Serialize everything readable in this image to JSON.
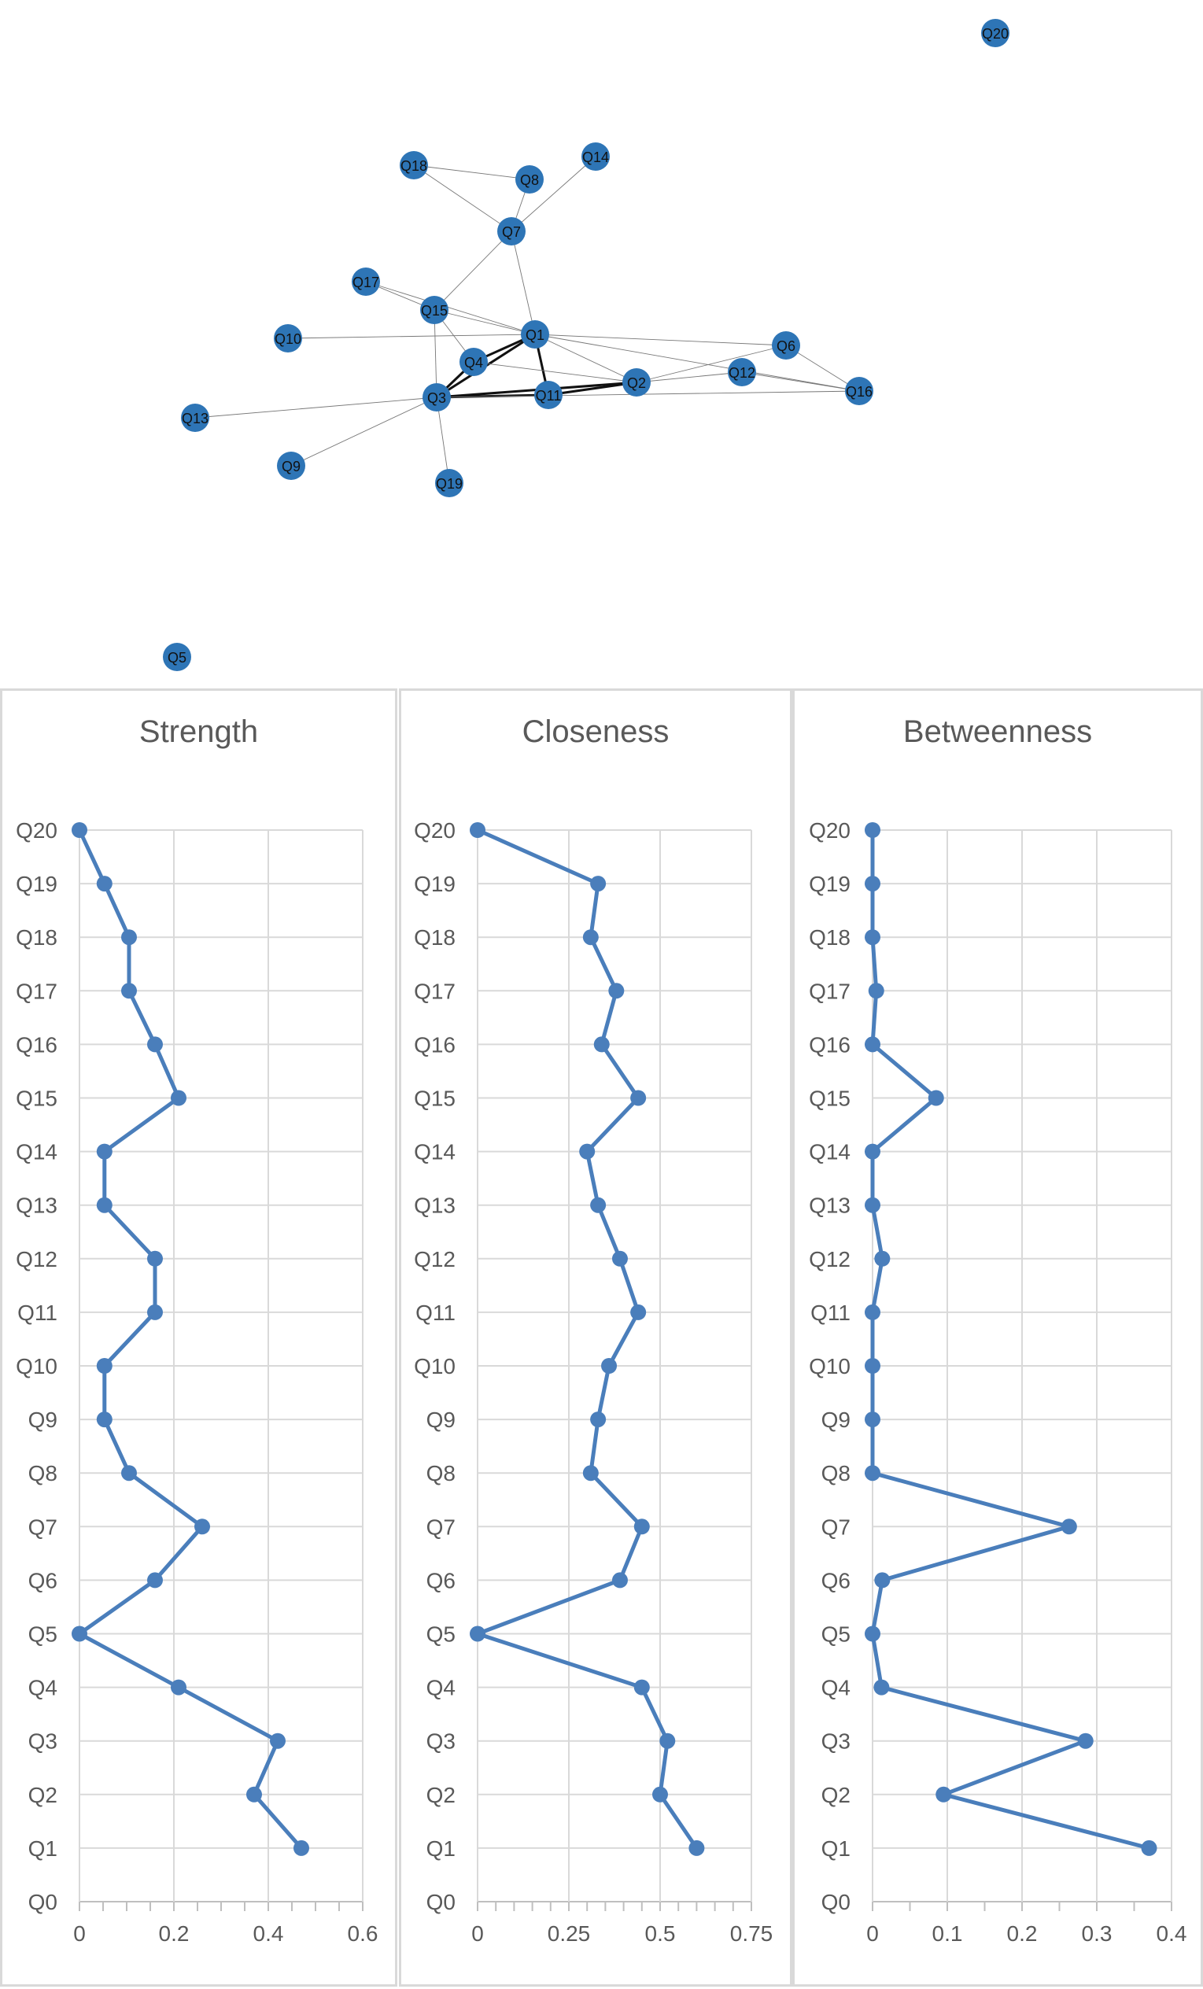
{
  "network": {
    "node_color": "#2e75b6",
    "nodes": [
      "Q20",
      "Q18",
      "Q8",
      "Q14",
      "Q7",
      "Q17",
      "Q15",
      "Q10",
      "Q1",
      "Q6",
      "Q4",
      "Q12",
      "Q2",
      "Q16",
      "Q13",
      "Q3",
      "Q11",
      "Q9",
      "Q19",
      "Q5"
    ],
    "edges": [
      [
        "Q18",
        "Q8"
      ],
      [
        "Q18",
        "Q7"
      ],
      [
        "Q8",
        "Q7"
      ],
      [
        "Q14",
        "Q7"
      ],
      [
        "Q7",
        "Q15"
      ],
      [
        "Q7",
        "Q1"
      ],
      [
        "Q17",
        "Q15"
      ],
      [
        "Q17",
        "Q1"
      ],
      [
        "Q15",
        "Q1"
      ],
      [
        "Q15",
        "Q3"
      ],
      [
        "Q15",
        "Q4"
      ],
      [
        "Q10",
        "Q1"
      ],
      [
        "Q1",
        "Q4"
      ],
      [
        "Q1",
        "Q3"
      ],
      [
        "Q1",
        "Q11"
      ],
      [
        "Q1",
        "Q2"
      ],
      [
        "Q1",
        "Q6"
      ],
      [
        "Q1",
        "Q16"
      ],
      [
        "Q4",
        "Q3"
      ],
      [
        "Q4",
        "Q2"
      ],
      [
        "Q3",
        "Q11"
      ],
      [
        "Q3",
        "Q2"
      ],
      [
        "Q11",
        "Q2"
      ],
      [
        "Q2",
        "Q12"
      ],
      [
        "Q2",
        "Q6"
      ],
      [
        "Q12",
        "Q16"
      ],
      [
        "Q6",
        "Q16"
      ],
      [
        "Q3",
        "Q16"
      ],
      [
        "Q3",
        "Q13"
      ],
      [
        "Q3",
        "Q9"
      ],
      [
        "Q3",
        "Q19"
      ]
    ],
    "strong_edges": [
      [
        "Q3",
        "Q2"
      ],
      [
        "Q3",
        "Q11"
      ],
      [
        "Q11",
        "Q2"
      ],
      [
        "Q4",
        "Q3"
      ],
      [
        "Q1",
        "Q4"
      ],
      [
        "Q1",
        "Q3"
      ],
      [
        "Q1",
        "Q11"
      ]
    ]
  },
  "chart_data": [
    {
      "type": "line",
      "title": "Strength",
      "categories": [
        "Q0",
        "Q1",
        "Q2",
        "Q3",
        "Q4",
        "Q5",
        "Q6",
        "Q7",
        "Q8",
        "Q9",
        "Q10",
        "Q11",
        "Q12",
        "Q13",
        "Q14",
        "Q15",
        "Q16",
        "Q17",
        "Q18",
        "Q19",
        "Q20"
      ],
      "x_ticks": [
        "0",
        "0.2",
        "0.4",
        "0.6"
      ],
      "xlim": [
        0,
        0.6
      ],
      "minor_step": 0.05,
      "series": [
        {
          "values": [
            null,
            0.47,
            0.37,
            0.42,
            0.21,
            0.0,
            0.16,
            0.26,
            0.105,
            0.053,
            0.053,
            0.16,
            0.16,
            0.053,
            0.053,
            0.21,
            0.16,
            0.105,
            0.105,
            0.053,
            0.0
          ]
        }
      ],
      "grid": true,
      "color": "#4a7ebb"
    },
    {
      "type": "line",
      "title": "Closeness",
      "categories": [
        "Q0",
        "Q1",
        "Q2",
        "Q3",
        "Q4",
        "Q5",
        "Q6",
        "Q7",
        "Q8",
        "Q9",
        "Q10",
        "Q11",
        "Q12",
        "Q13",
        "Q14",
        "Q15",
        "Q16",
        "Q17",
        "Q18",
        "Q19",
        "Q20"
      ],
      "x_ticks": [
        "0",
        "0.25",
        "0.5",
        "0.75"
      ],
      "xlim": [
        0,
        0.75
      ],
      "minor_step": 0.05,
      "series": [
        {
          "values": [
            null,
            0.6,
            0.5,
            0.52,
            0.45,
            0.0,
            0.39,
            0.45,
            0.31,
            0.33,
            0.36,
            0.44,
            0.39,
            0.33,
            0.3,
            0.44,
            0.34,
            0.38,
            0.31,
            0.33,
            0.0
          ]
        }
      ],
      "grid": true,
      "color": "#4a7ebb"
    },
    {
      "type": "line",
      "title": "Betweenness",
      "categories": [
        "Q0",
        "Q1",
        "Q2",
        "Q3",
        "Q4",
        "Q5",
        "Q6",
        "Q7",
        "Q8",
        "Q9",
        "Q10",
        "Q11",
        "Q12",
        "Q13",
        "Q14",
        "Q15",
        "Q16",
        "Q17",
        "Q18",
        "Q19",
        "Q20"
      ],
      "x_ticks": [
        "0",
        "0.1",
        "0.2",
        "0.3",
        "0.4"
      ],
      "xlim": [
        0,
        0.4
      ],
      "minor_step": 0.05,
      "series": [
        {
          "values": [
            null,
            0.37,
            0.095,
            0.285,
            0.012,
            0.0,
            0.013,
            0.263,
            0.0,
            0.0,
            0.0,
            0.0,
            0.013,
            0.0,
            0.0,
            0.085,
            0.0,
            0.005,
            0.0,
            0.0,
            0.0
          ]
        }
      ],
      "grid": true,
      "color": "#4a7ebb"
    }
  ]
}
